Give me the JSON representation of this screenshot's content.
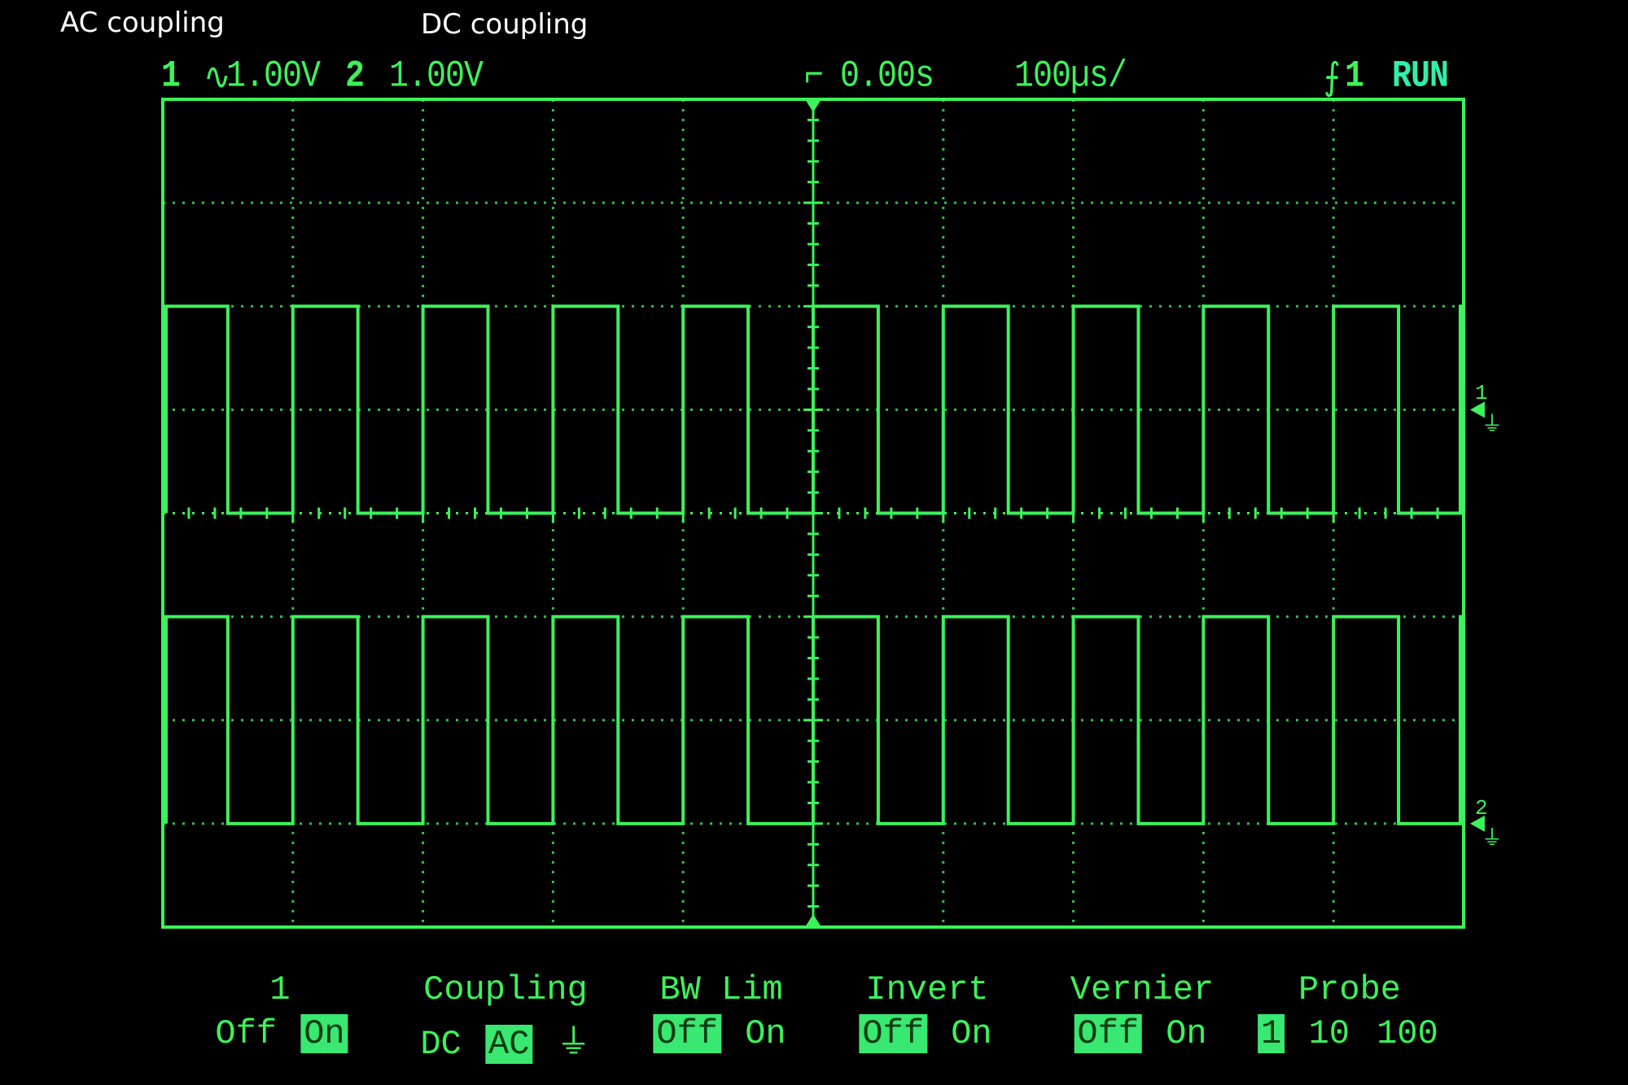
{
  "annotations": {
    "ac_label": "AC coupling",
    "dc_label": "DC coupling"
  },
  "status": {
    "ch1_label": "1",
    "ch1_coupling_icon": "ac-coupling-icon",
    "ch1_scale": "1.00V",
    "ch2_label": "2",
    "ch2_scale": "1.00V",
    "trigger_delay": "0.00s",
    "timebase": "100µs/",
    "trigger_source": "1",
    "trigger_icon": "rising-edge-icon",
    "run_state": "RUN"
  },
  "colors": {
    "trace": "#3cf25a",
    "run": "#2ff0a8",
    "highlight": "#38e870",
    "annotation": "#ffffff"
  },
  "waveforms": [
    {
      "channel": "1",
      "coupling": "AC",
      "volts_per_div": 1.0,
      "high_V": 1.0,
      "low_V": -1.0,
      "period_us": 100,
      "duty": 0.5
    },
    {
      "channel": "2",
      "coupling": "DC",
      "volts_per_div": 1.0,
      "high_V": 2.0,
      "low_V": 0.0,
      "period_us": 100,
      "duty": 0.5
    }
  ],
  "ground_markers": [
    {
      "label": "1"
    },
    {
      "label": "2"
    }
  ],
  "menu": [
    {
      "title": "1",
      "options": [
        {
          "label": "Off",
          "selected": false
        },
        {
          "label": "On",
          "selected": true
        }
      ]
    },
    {
      "title": "Coupling",
      "options": [
        {
          "label": "DC",
          "selected": false
        },
        {
          "label": "AC",
          "selected": true
        },
        {
          "label": "⏚",
          "selected": false
        }
      ]
    },
    {
      "title": "BW Lim",
      "options": [
        {
          "label": "Off",
          "selected": true
        },
        {
          "label": "On",
          "selected": false
        }
      ]
    },
    {
      "title": "Invert",
      "options": [
        {
          "label": "Off",
          "selected": true
        },
        {
          "label": "On",
          "selected": false
        }
      ]
    },
    {
      "title": "Vernier",
      "options": [
        {
          "label": "Off",
          "selected": true
        },
        {
          "label": "On",
          "selected": false
        }
      ]
    },
    {
      "title": "Probe",
      "options": [
        {
          "label": "1",
          "selected": true
        },
        {
          "label": "10",
          "selected": false
        },
        {
          "label": "100",
          "selected": false
        }
      ]
    }
  ]
}
